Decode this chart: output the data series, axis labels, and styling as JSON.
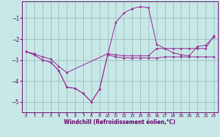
{
  "xlabel": "Windchill (Refroidissement éolien,°C)",
  "line1_x": [
    0,
    1,
    2,
    3,
    4,
    5,
    6,
    7,
    8,
    9,
    10,
    11,
    12,
    13,
    14,
    15,
    16,
    17,
    18,
    19,
    20,
    21,
    22,
    23
  ],
  "line1_y": [
    -2.6,
    -2.75,
    -3.0,
    -3.1,
    -3.5,
    -4.3,
    -4.35,
    -4.6,
    -5.0,
    -4.4,
    -2.75,
    -1.2,
    -0.75,
    -0.55,
    -0.45,
    -0.5,
    -2.25,
    -2.45,
    -2.65,
    -2.75,
    -2.8,
    -2.35,
    -2.3,
    -1.9
  ],
  "line2_x": [
    0,
    1,
    2,
    3,
    4,
    5,
    6,
    7,
    8,
    9,
    10,
    11,
    12,
    13,
    14,
    15,
    16,
    17,
    18,
    19,
    20,
    21,
    22,
    23
  ],
  "line2_y": [
    -2.6,
    -2.75,
    -3.0,
    -3.1,
    -3.5,
    -4.3,
    -4.35,
    -4.6,
    -5.0,
    -4.4,
    -2.75,
    -2.85,
    -2.9,
    -2.9,
    -2.9,
    -2.9,
    -2.9,
    -2.85,
    -2.85,
    -2.85,
    -2.85,
    -2.85,
    -2.85,
    -2.85
  ],
  "line3_x": [
    0,
    1,
    2,
    3,
    4,
    5,
    10,
    11,
    12,
    13,
    14,
    15,
    16,
    17,
    18,
    19,
    20,
    21,
    22,
    23
  ],
  "line3_y": [
    -2.6,
    -2.7,
    -2.85,
    -2.95,
    -3.3,
    -3.6,
    -2.7,
    -2.75,
    -2.8,
    -2.8,
    -2.8,
    -2.8,
    -2.45,
    -2.45,
    -2.45,
    -2.45,
    -2.45,
    -2.45,
    -2.45,
    -1.85
  ],
  "line_color": "#993399",
  "bg_color": "#c8e8e8",
  "grid_color": "#99bbbb",
  "axis_color": "#660066",
  "text_color": "#660066",
  "ylim": [
    -5.5,
    -0.2
  ],
  "xlim": [
    -0.5,
    23.5
  ],
  "yticks": [
    -5,
    -4,
    -3,
    -2,
    -1
  ],
  "xticks": [
    0,
    1,
    2,
    3,
    4,
    5,
    6,
    7,
    8,
    9,
    10,
    11,
    12,
    13,
    14,
    15,
    16,
    17,
    18,
    19,
    20,
    21,
    22,
    23
  ]
}
